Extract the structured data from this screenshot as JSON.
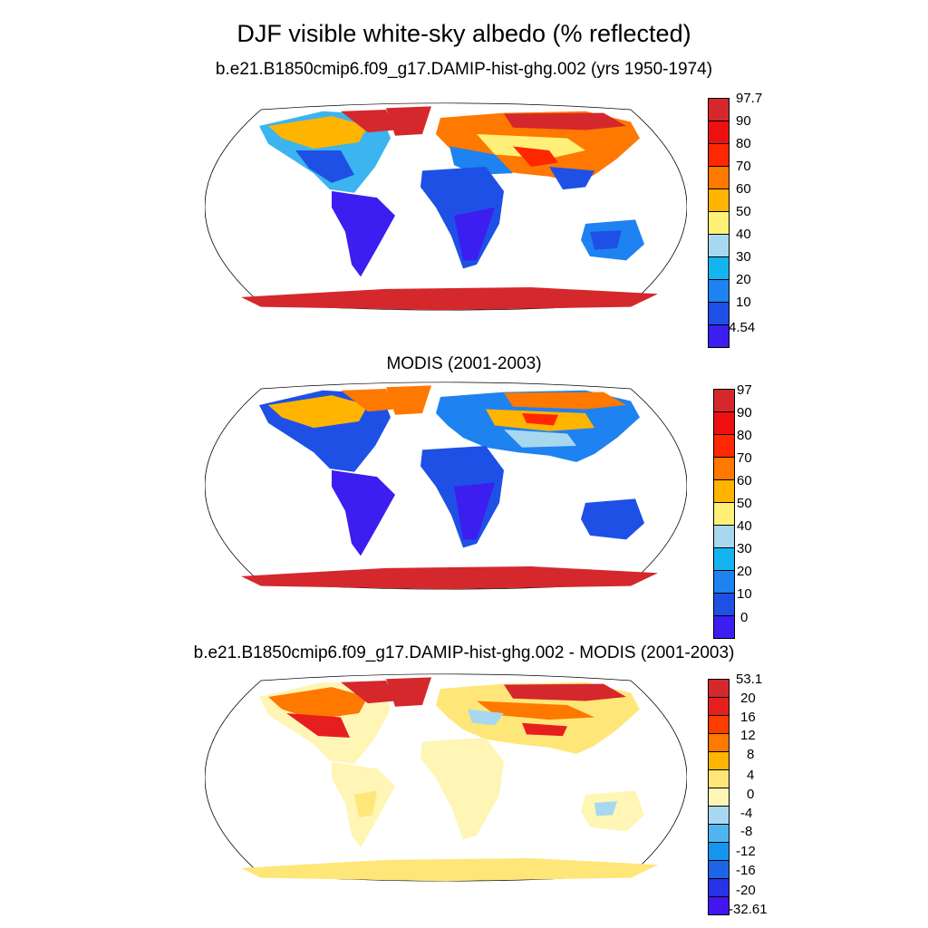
{
  "figure": {
    "title": "DJF visible white-sky albedo (% reflected)"
  },
  "panels": [
    {
      "title": "b.e21.B1850cmip6.f09_g17.DAMIP-hist-ghg.002 (yrs 1950-1974)",
      "colorbar": {
        "labels": [
          "97.7",
          "90",
          "80",
          "70",
          "60",
          "50",
          "40",
          "30",
          "20",
          "10",
          "4.54"
        ],
        "colors": [
          "#d4282c",
          "#ee1010",
          "#ff2800",
          "#ff7800",
          "#ffb400",
          "#fff078",
          "#a8d8f0",
          "#14b4f0",
          "#1e82f0",
          "#1e50e6",
          "#3c1ef0"
        ]
      }
    },
    {
      "title": "MODIS (2001-2003)",
      "colorbar": {
        "labels": [
          "97",
          "90",
          "80",
          "70",
          "60",
          "50",
          "40",
          "30",
          "20",
          "10",
          "0"
        ],
        "colors": [
          "#d4282c",
          "#ee1010",
          "#ff2800",
          "#ff7800",
          "#ffb400",
          "#fff078",
          "#a8d8f0",
          "#14b4f0",
          "#1e82f0",
          "#1e50e6",
          "#3c1ef0"
        ]
      }
    },
    {
      "title": "b.e21.B1850cmip6.f09_g17.DAMIP-hist-ghg.002 - MODIS (2001-2003)",
      "colorbar": {
        "labels": [
          "53.1",
          "20",
          "16",
          "12",
          "8",
          "4",
          "0",
          "-4",
          "-8",
          "-12",
          "-16",
          "-20",
          "-32.61"
        ],
        "colors": [
          "#d4282c",
          "#e61e1e",
          "#ff3c00",
          "#ff7800",
          "#ffb400",
          "#ffe678",
          "#fff5b4",
          "#a8d8f0",
          "#50b4f0",
          "#1496f0",
          "#1e64e6",
          "#2832e6",
          "#4614f0"
        ]
      }
    }
  ]
}
